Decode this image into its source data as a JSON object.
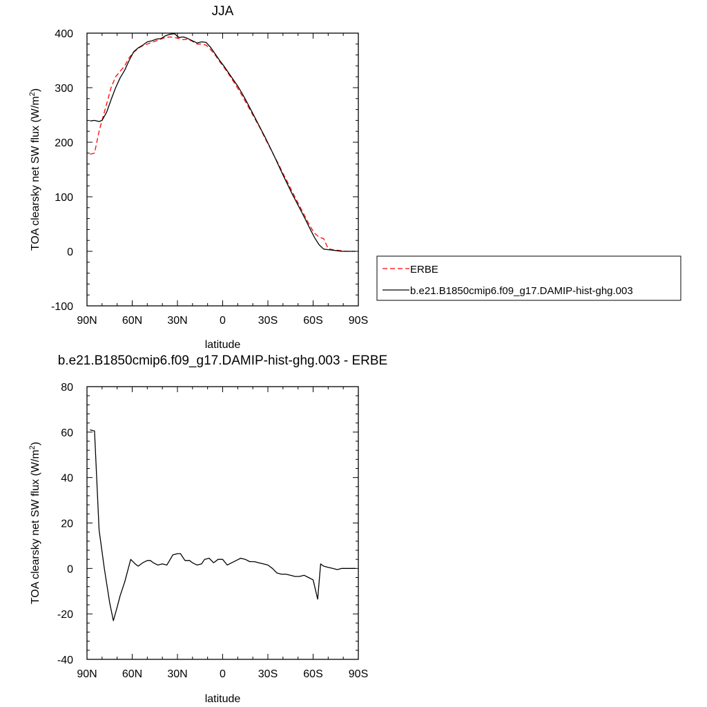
{
  "chart_data": [
    {
      "type": "line",
      "title": "JJA",
      "xlabel": "latitude",
      "ylabel": "TOA clearsky net SW flux (W/m²)",
      "ylabel_base": "TOA clearsky net SW flux (W/m",
      "ylabel_sup": "2",
      "ylabel_tail": ")",
      "xlim": [
        90,
        -90
      ],
      "ylim": [
        -100,
        400
      ],
      "x_ticks": [
        90,
        60,
        30,
        0,
        -30,
        -60,
        -90
      ],
      "x_tick_labels": [
        "90N",
        "60N",
        "30N",
        "0",
        "30S",
        "60S",
        "90S"
      ],
      "y_ticks": [
        -100,
        0,
        100,
        200,
        300,
        400
      ],
      "y_tick_labels": [
        "-100",
        "0",
        "100",
        "200",
        "300",
        "400"
      ],
      "legend_position": "right",
      "series": [
        {
          "name": "ERBE",
          "color": "#ff0000",
          "dash": "dashed",
          "x": [
            88,
            85,
            82,
            80,
            77,
            74,
            71,
            68,
            65,
            62,
            59,
            56,
            53,
            50,
            47,
            44,
            41,
            38,
            35,
            32,
            29,
            26,
            23,
            20,
            17,
            14,
            11,
            8,
            5,
            2,
            -1,
            -4,
            -7,
            -10,
            -13,
            -16,
            -19,
            -22,
            -25,
            -28,
            -31,
            -34,
            -37,
            -40,
            -43,
            -46,
            -49,
            -52,
            -55,
            -58,
            -61,
            -64,
            -67,
            -70,
            -73,
            -76,
            -79,
            -82,
            -85,
            -88
          ],
          "y": [
            178,
            180,
            220,
            240,
            270,
            300,
            320,
            330,
            340,
            355,
            365,
            372,
            377,
            380,
            383,
            386,
            389,
            392,
            393,
            392,
            390,
            388,
            389,
            385,
            380,
            380,
            378,
            370,
            360,
            348,
            337,
            325,
            312,
            299,
            285,
            270,
            255,
            240,
            225,
            208,
            192,
            176,
            160,
            143,
            127,
            110,
            94,
            78,
            62,
            46,
            33,
            26,
            23,
            5,
            3,
            2,
            1,
            0,
            0,
            0
          ]
        },
        {
          "name": "b.e21.B1850cmip6.f09_g17.DAMIP-hist-ghg.003",
          "color": "#000000",
          "dash": "solid",
          "x": [
            88,
            85,
            82,
            80,
            77,
            74,
            71,
            68,
            65,
            62,
            59,
            56,
            53,
            50,
            47,
            44,
            41,
            38,
            35,
            32,
            29,
            26,
            23,
            20,
            17,
            14,
            11,
            8,
            5,
            2,
            -1,
            -4,
            -7,
            -10,
            -13,
            -16,
            -19,
            -22,
            -25,
            -28,
            -31,
            -34,
            -37,
            -40,
            -43,
            -46,
            -49,
            -52,
            -55,
            -58,
            -61,
            -64,
            -67,
            -70,
            -73,
            -76,
            -79,
            -82,
            -85,
            -88
          ],
          "y": [
            239,
            240,
            238,
            240,
            255,
            278,
            300,
            318,
            332,
            350,
            366,
            373,
            378,
            384,
            386,
            389,
            390,
            395,
            398,
            399,
            392,
            393,
            390,
            386,
            382,
            384,
            383,
            374,
            362,
            350,
            339,
            327,
            315,
            303,
            289,
            274,
            258,
            242,
            226,
            210,
            193,
            176,
            158,
            140,
            123,
            106,
            90,
            74,
            58,
            41,
            25,
            12,
            4,
            3,
            2,
            1,
            0,
            0,
            0,
            0
          ]
        }
      ]
    },
    {
      "type": "line",
      "title": "b.e21.B1850cmip6.f09_g17.DAMIP-hist-ghg.003 - ERBE",
      "xlabel": "latitude",
      "ylabel": "TOA clearsky net SW flux (W/m²)",
      "ylabel_base": "TOA clearsky net SW flux (W/m",
      "ylabel_sup": "2",
      "ylabel_tail": ")",
      "xlim": [
        90,
        -90
      ],
      "ylim": [
        -40,
        80
      ],
      "x_ticks": [
        90,
        60,
        30,
        0,
        -30,
        -60,
        -90
      ],
      "x_tick_labels": [
        "90N",
        "60N",
        "30N",
        "0",
        "30S",
        "60S",
        "90S"
      ],
      "y_ticks": [
        -40,
        -20,
        0,
        20,
        40,
        60,
        80
      ],
      "y_tick_labels": [
        "-40",
        "-20",
        "0",
        "20",
        "40",
        "60",
        "80"
      ],
      "series": [
        {
          "color": "#000000",
          "dash": "solid",
          "x": [
            88,
            85,
            82,
            78.5,
            75,
            72.5,
            70,
            68,
            65,
            61,
            58,
            56,
            53,
            50,
            48,
            46,
            43,
            40,
            37,
            33,
            30,
            28,
            25,
            22,
            20,
            17,
            14,
            12,
            9,
            6,
            3,
            0,
            -3,
            -6,
            -9,
            -12,
            -15,
            -18,
            -21,
            -24,
            -27,
            -30,
            -33,
            -36,
            -39,
            -42,
            -45,
            -48,
            -51,
            -54,
            -57,
            -60,
            -63,
            -65,
            -67,
            -70,
            -73,
            -76,
            -79,
            -82,
            -85,
            -88
          ],
          "y": [
            61,
            60.5,
            17,
            0,
            -15,
            -23,
            -17,
            -12,
            -6,
            4,
            2,
            1,
            2.5,
            3.5,
            3.5,
            2.5,
            1.5,
            2,
            1.5,
            6,
            6.5,
            6.5,
            3.5,
            3.5,
            2.5,
            1.5,
            2,
            4,
            4.5,
            2.5,
            4,
            4,
            1.5,
            2.5,
            3.5,
            4.5,
            4,
            3,
            3,
            2.5,
            2,
            1.5,
            0,
            -2,
            -2.5,
            -2.5,
            -3,
            -3.5,
            -3.5,
            -3,
            -4,
            -5,
            -13.5,
            2,
            1,
            0.5,
            0,
            -0.5,
            0,
            0,
            0,
            0
          ]
        }
      ]
    }
  ]
}
